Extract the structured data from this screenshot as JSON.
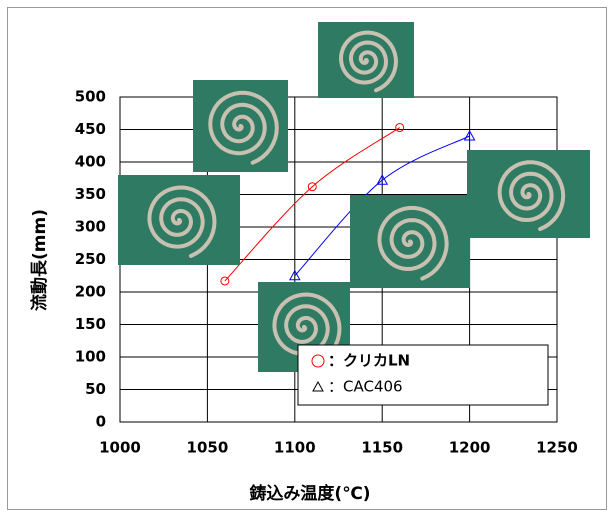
{
  "chart_data": {
    "type": "line",
    "x_label": "鋳込み温度(℃)",
    "y_label": "流動長(mm)",
    "xlim": [
      1000,
      1250
    ],
    "xticks": [
      1000,
      1050,
      1100,
      1150,
      1200,
      1250
    ],
    "ylim": [
      0,
      500
    ],
    "yticks": [
      0,
      50,
      100,
      150,
      200,
      250,
      300,
      350,
      400,
      450,
      500
    ],
    "grid": true,
    "series": [
      {
        "name": "：クリカLN",
        "color": "#ff0000",
        "marker": "circle",
        "x": [
          1060,
          1110,
          1160
        ],
        "values": [
          217,
          362,
          453
        ]
      },
      {
        "name": "：CAC406",
        "color": "#0000ff",
        "marker": "triangle",
        "x": [
          1100,
          1150,
          1200
        ],
        "values": [
          225,
          372,
          440
        ]
      }
    ]
  }
}
